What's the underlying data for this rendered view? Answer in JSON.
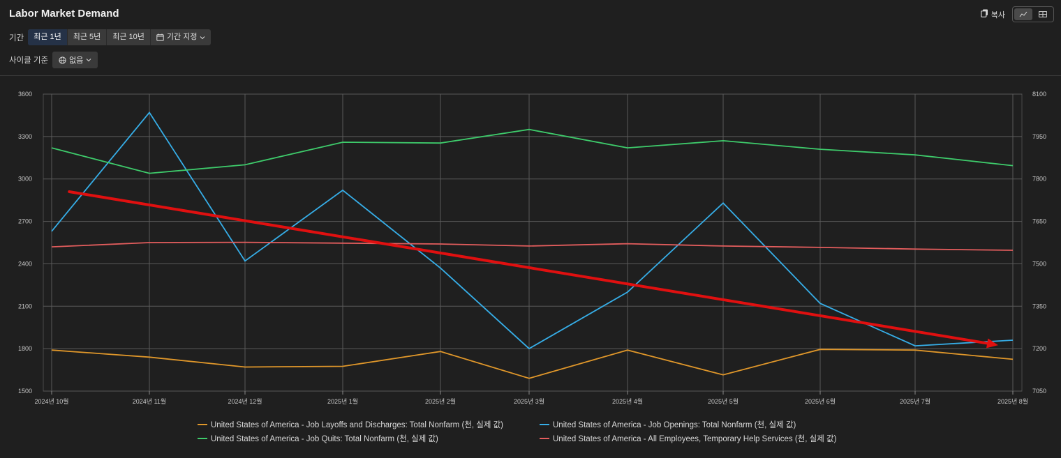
{
  "header": {
    "title": "Labor Market Demand",
    "copy_label": "복사"
  },
  "filters": {
    "period_label": "기간",
    "period_options": [
      "최근 1년",
      "최근 5년",
      "최근 10년"
    ],
    "custom_period_label": "기간 지정",
    "cycle_label": "사이클 기준",
    "cycle_value": "없음"
  },
  "colors": {
    "layoffs": "#e0972a",
    "openings": "#36aee8",
    "quits": "#3ecb6b",
    "temp": "#e35d5d",
    "trend_arrow": "#e01010"
  },
  "chart_data": {
    "type": "line",
    "categories": [
      "2024년 10월",
      "2024년 11월",
      "2024년 12월",
      "2025년 1월",
      "2025년 2월",
      "2025년 3월",
      "2025년 4월",
      "2025년 5월",
      "2025년 6월",
      "2025년 7월",
      "2025년 8월"
    ],
    "y_left": {
      "min": 1500,
      "max": 3600,
      "ticks": [
        "1500",
        "1800",
        "2100",
        "2400",
        "2700",
        "3000",
        "3300",
        "3600"
      ]
    },
    "y_right": {
      "min": 7050,
      "max": 8100,
      "ticks": [
        "7050",
        "7200",
        "7350",
        "7500",
        "7650",
        "7800",
        "7950",
        "8100"
      ]
    },
    "grid": true,
    "legend_position": "bottom",
    "series": [
      {
        "name": "United States of America - Job Layoffs and Discharges: Total Nonfarm (천, 실제 값)",
        "axis": "left",
        "color": "#e0972a",
        "values": [
          1790,
          1740,
          1670,
          1675,
          1780,
          1590,
          1790,
          1615,
          1795,
          1790,
          1725
        ]
      },
      {
        "name": "United States of America - Job Openings: Total Nonfarm (천, 실제 값)",
        "axis": "left",
        "color": "#36aee8",
        "values": [
          2630,
          3470,
          2420,
          2920,
          2370,
          1800,
          2200,
          2830,
          2120,
          1820,
          1860
        ]
      },
      {
        "name": "United States of America - Job Quits: Total Nonfarm (천, 실제 값)",
        "axis": "right",
        "color": "#3ecb6b",
        "values": [
          7910,
          7820,
          7850,
          7930,
          7927,
          7975,
          7910,
          7935,
          7905,
          7885,
          7847
        ]
      },
      {
        "name": "United States of America - All Employees, Temporary Help Services (천, 실제 값)",
        "axis": "right",
        "color": "#e35d5d",
        "values": [
          7560,
          7575,
          7576,
          7573,
          7570,
          7563,
          7571,
          7563,
          7558,
          7552,
          7548
        ]
      }
    ],
    "annotation_arrow": {
      "from": {
        "category_index": 0.18,
        "left_value": 2910
      },
      "to": {
        "category_index": 9.85,
        "left_value": 1825
      }
    }
  }
}
